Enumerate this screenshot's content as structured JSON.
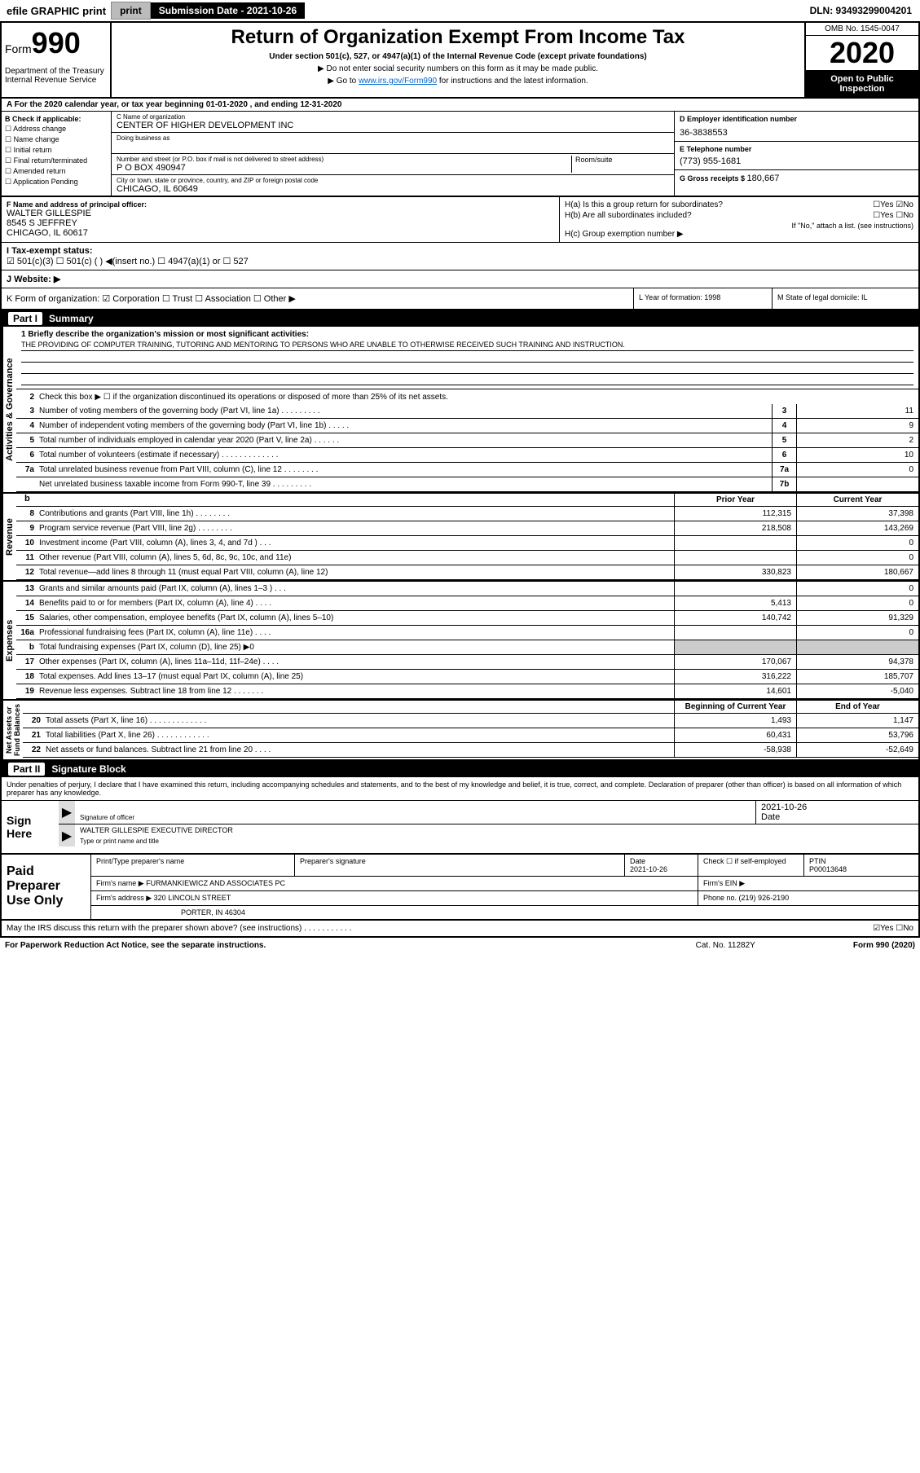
{
  "topbar": {
    "efile": "efile GRAPHIC print",
    "submission": "Submission Date - 2021-10-26",
    "dln": "DLN: 93493299004201"
  },
  "header": {
    "form_label": "Form",
    "form_num": "990",
    "dept": "Department of the Treasury Internal Revenue Service",
    "title": "Return of Organization Exempt From Income Tax",
    "subtitle": "Under section 501(c), 527, or 4947(a)(1) of the Internal Revenue Code (except private foundations)",
    "note1": "▶ Do not enter social security numbers on this form as it may be made public.",
    "note2_pre": "▶ Go to ",
    "note2_link": "www.irs.gov/Form990",
    "note2_post": " for instructions and the latest information.",
    "omb": "OMB No. 1545-0047",
    "year": "2020",
    "open": "Open to Public Inspection"
  },
  "rowA": "A For the 2020 calendar year, or tax year beginning 01-01-2020    , and ending 12-31-2020",
  "colB": {
    "header": "B Check if applicable:",
    "items": [
      "☐ Address change",
      "☐ Name change",
      "☐ Initial return",
      "☐ Final return/terminated",
      "☐ Amended return",
      "☐ Application Pending"
    ]
  },
  "colC": {
    "name_label": "C Name of organization",
    "name": "CENTER OF HIGHER DEVELOPMENT INC",
    "dba_label": "Doing business as",
    "dba": "",
    "addr_label": "Number and street (or P.O. box if mail is not delivered to street address)",
    "addr": "P O BOX 490947",
    "room_label": "Room/suite",
    "city_label": "City or town, state or province, country, and ZIP or foreign postal code",
    "city": "CHICAGO, IL  60649"
  },
  "colDEG": {
    "d_label": "D Employer identification number",
    "d_val": "36-3838553",
    "e_label": "E Telephone number",
    "e_val": "(773) 955-1681",
    "g_label": "G Gross receipts $ ",
    "g_val": "180,667"
  },
  "colF": {
    "label": "F  Name and address of principal officer:",
    "name": "WALTER GILLESPIE",
    "addr": "8545 S JEFFREY",
    "city": "CHICAGO, IL  60617"
  },
  "colH": {
    "ha": "H(a)  Is this a group return for subordinates?",
    "ha_ans": "☐Yes ☑No",
    "hb": "H(b)  Are all subordinates included?",
    "hb_ans": "☐Yes ☐No",
    "hb_note": "If \"No,\" attach a list. (see instructions)",
    "hc": "H(c)  Group exemption number ▶"
  },
  "rowI": {
    "label": "I  Tax-exempt status:",
    "opts": "☑ 501(c)(3)   ☐ 501(c) (  ) ◀(insert no.)   ☐ 4947(a)(1) or   ☐ 527"
  },
  "rowJ": "J  Website: ▶",
  "rowK": "K Form of organization:  ☑ Corporation  ☐ Trust  ☐ Association  ☐ Other ▶",
  "colL": "L Year of formation: 1998",
  "colM": "M State of legal domicile: IL",
  "part1": {
    "header": "Summary",
    "q1_label": "1  Briefly describe the organization's mission or most significant activities:",
    "q1_text": "THE PROVIDING OF COMPUTER TRAINING, TUTORING AND MENTORING TO PERSONS WHO ARE UNABLE TO OTHERWISE RECEIVED SUCH TRAINING AND INSTRUCTION.",
    "q2": "Check this box ▶ ☐  if the organization discontinued its operations or disposed of more than 25% of its net assets.",
    "lines_gov": [
      {
        "n": "3",
        "t": "Number of voting members of the governing body (Part VI, line 1a)  .   .   .   .   .   .   .   .   .",
        "b": "3",
        "v": "11"
      },
      {
        "n": "4",
        "t": "Number of independent voting members of the governing body (Part VI, line 1b)  .   .   .   .   .",
        "b": "4",
        "v": "9"
      },
      {
        "n": "5",
        "t": "Total number of individuals employed in calendar year 2020 (Part V, line 2a)  .   .   .   .   .   .",
        "b": "5",
        "v": "2"
      },
      {
        "n": "6",
        "t": "Total number of volunteers (estimate if necessary)    .   .   .   .   .   .   .   .   .   .   .   .   .",
        "b": "6",
        "v": "10"
      },
      {
        "n": "7a",
        "t": "Total unrelated business revenue from Part VIII, column (C), line 12  .   .   .   .   .   .   .   .",
        "b": "7a",
        "v": "0"
      },
      {
        "n": "",
        "t": "Net unrelated business taxable income from Form 990-T, line 39  .   .   .   .   .   .   .   .   .",
        "b": "7b",
        "v": ""
      }
    ],
    "col_headers": {
      "prior": "Prior Year",
      "current": "Current Year"
    },
    "lines_rev": [
      {
        "n": "8",
        "t": "Contributions and grants (Part VIII, line 1h)   .   .   .   .   .   .   .   .",
        "p": "112,315",
        "c": "37,398"
      },
      {
        "n": "9",
        "t": "Program service revenue (Part VIII, line 2g)   .   .   .   .   .   .   .   .",
        "p": "218,508",
        "c": "143,269"
      },
      {
        "n": "10",
        "t": "Investment income (Part VIII, column (A), lines 3, 4, and 7d )   .   .   .",
        "p": "",
        "c": "0"
      },
      {
        "n": "11",
        "t": "Other revenue (Part VIII, column (A), lines 5, 6d, 8c, 9c, 10c, and 11e)",
        "p": "",
        "c": "0"
      },
      {
        "n": "12",
        "t": "Total revenue—add lines 8 through 11 (must equal Part VIII, column (A), line 12)",
        "p": "330,823",
        "c": "180,667"
      }
    ],
    "lines_exp": [
      {
        "n": "13",
        "t": "Grants and similar amounts paid (Part IX, column (A), lines 1–3 )   .   .   .",
        "p": "",
        "c": "0"
      },
      {
        "n": "14",
        "t": "Benefits paid to or for members (Part IX, column (A), line 4)   .   .   .   .",
        "p": "5,413",
        "c": "0"
      },
      {
        "n": "15",
        "t": "Salaries, other compensation, employee benefits (Part IX, column (A), lines 5–10)",
        "p": "140,742",
        "c": "91,329"
      },
      {
        "n": "16a",
        "t": "Professional fundraising fees (Part IX, column (A), line 11e)   .   .   .   .",
        "p": "",
        "c": "0"
      },
      {
        "n": "b",
        "t": "Total fundraising expenses (Part IX, column (D), line 25) ▶0",
        "p": "shaded",
        "c": "shaded"
      },
      {
        "n": "17",
        "t": "Other expenses (Part IX, column (A), lines 11a–11d, 11f–24e)   .   .   .   .",
        "p": "170,067",
        "c": "94,378"
      },
      {
        "n": "18",
        "t": "Total expenses. Add lines 13–17 (must equal Part IX, column (A), line 25)",
        "p": "316,222",
        "c": "185,707"
      },
      {
        "n": "19",
        "t": "Revenue less expenses. Subtract line 18 from line 12  .   .   .   .   .   .   .",
        "p": "14,601",
        "c": "-5,040"
      }
    ],
    "net_headers": {
      "begin": "Beginning of Current Year",
      "end": "End of Year"
    },
    "lines_net": [
      {
        "n": "20",
        "t": "Total assets (Part X, line 16)  .   .   .   .   .   .   .   .   .   .   .   .   .",
        "p": "1,493",
        "c": "1,147"
      },
      {
        "n": "21",
        "t": "Total liabilities (Part X, line 26)  .   .   .   .   .   .   .   .   .   .   .   .",
        "p": "60,431",
        "c": "53,796"
      },
      {
        "n": "22",
        "t": "Net assets or fund balances. Subtract line 21 from line 20  .   .   .   .",
        "p": "-58,938",
        "c": "-52,649"
      }
    ]
  },
  "part2": {
    "header": "Signature Block",
    "intro": "Under penalties of perjury, I declare that I have examined this return, including accompanying schedules and statements, and to the best of my knowledge and belief, it is true, correct, and complete. Declaration of preparer (other than officer) is based on all information of which preparer has any knowledge.",
    "sign_here": "Sign Here",
    "sig_label": "Signature of officer",
    "sig_date": "2021-10-26",
    "sig_date_label": "Date",
    "officer": "WALTER GILLESPIE  EXECUTIVE DIRECTOR",
    "officer_label": "Type or print name and title",
    "paid": "Paid Preparer Use Only",
    "prep_name_label": "Print/Type preparer's name",
    "prep_sig_label": "Preparer's signature",
    "prep_date_label": "Date",
    "prep_date": "2021-10-26",
    "prep_check": "Check ☐  if self-employed",
    "ptin_label": "PTIN",
    "ptin": "P00013648",
    "firm_name_label": "Firm's name    ▶",
    "firm_name": "FURMANKIEWICZ AND ASSOCIATES PC",
    "firm_ein_label": "Firm's EIN ▶",
    "firm_addr_label": "Firm's address ▶",
    "firm_addr1": "320 LINCOLN STREET",
    "firm_addr2": "PORTER, IN  46304",
    "firm_phone_label": "Phone no. ",
    "firm_phone": "(219) 926-2190",
    "discuss": "May the IRS discuss this return with the preparer shown above? (see instructions)   .   .   .   .   .   .   .   .   .   .   .",
    "discuss_ans": "☑Yes   ☐No"
  },
  "footer": {
    "left": "For Paperwork Reduction Act Notice, see the separate instructions.",
    "center": "Cat. No. 11282Y",
    "right": "Form 990 (2020)"
  }
}
